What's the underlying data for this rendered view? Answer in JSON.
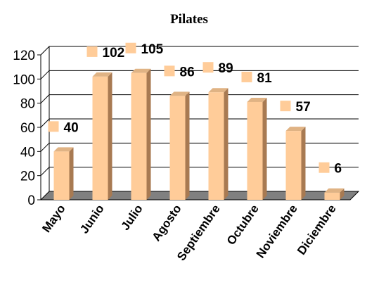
{
  "chart_data": {
    "type": "bar",
    "title": "Pilates",
    "categories": [
      "Mayo",
      "Junio",
      "Julio",
      "Agosto",
      "Septiembre",
      "Octubre",
      "Noviembre",
      "Diciembre"
    ],
    "values": [
      40,
      102,
      105,
      86,
      89,
      81,
      57,
      6
    ],
    "ylim": [
      0,
      120
    ],
    "yticks": [
      "0",
      "20",
      "40",
      "60",
      "80",
      "100",
      "120"
    ],
    "xlabel": "",
    "ylabel": "",
    "grid": true,
    "legend": "none",
    "style": "3d",
    "colors": {
      "bar_front": "#ffcc99",
      "bar_side": "#a87a52",
      "bar_top": "#e0b384",
      "floor": "#808080",
      "label_marker": "#ffcc99"
    }
  }
}
